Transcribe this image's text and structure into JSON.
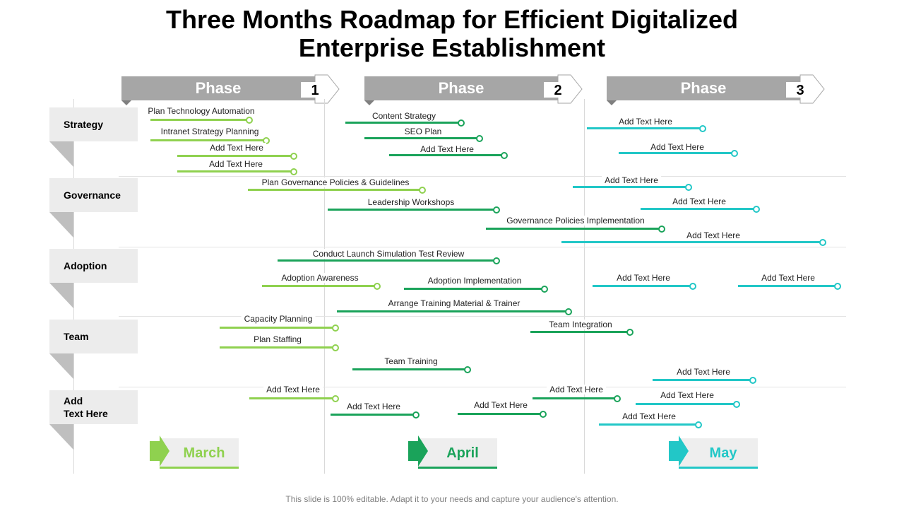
{
  "title": {
    "line1": "Three Months Roadmap for Efficient Digitalized",
    "line2": "Enterprise Establishment"
  },
  "phases": [
    {
      "label": "Phase",
      "number": "1"
    },
    {
      "label": "Phase",
      "number": "2"
    },
    {
      "label": "Phase",
      "number": "3"
    }
  ],
  "categories": [
    {
      "line1": "Strategy"
    },
    {
      "line1": "Governance"
    },
    {
      "line1": "Adoption"
    },
    {
      "line1": "Team"
    },
    {
      "line1": "Add",
      "line2": "Text Here"
    }
  ],
  "colors": {
    "light_green": "#8fd14f",
    "green": "#1aa35a",
    "cyan": "#22c7c7",
    "phase_grey": "#a6a6a6",
    "category_grey": "#ececec"
  },
  "tasks": [
    {
      "label": "Plan Technology Automation",
      "color": "light_green"
    },
    {
      "label": "Intranet Strategy Planning",
      "color": "light_green"
    },
    {
      "label": "Add Text Here",
      "color": "light_green"
    },
    {
      "label": "Add Text Here",
      "color": "light_green"
    },
    {
      "label": "Content Strategy",
      "color": "green"
    },
    {
      "label": "SEO Plan",
      "color": "green"
    },
    {
      "label": "Add Text Here",
      "color": "green"
    },
    {
      "label": "Add Text Here",
      "color": "cyan"
    },
    {
      "label": "Add Text Here",
      "color": "cyan"
    },
    {
      "label": "Plan Governance Policies & Guidelines",
      "color": "light_green"
    },
    {
      "label": "Leadership Workshops",
      "color": "green"
    },
    {
      "label": "Governance Policies Implementation",
      "color": "green"
    },
    {
      "label": "Add Text Here",
      "color": "cyan"
    },
    {
      "label": "Add Text Here",
      "color": "cyan"
    },
    {
      "label": "Add Text Here",
      "color": "cyan"
    },
    {
      "label": "Conduct Launch Simulation Test Review",
      "color": "green"
    },
    {
      "label": "Adoption Awareness",
      "color": "light_green"
    },
    {
      "label": "Adoption Implementation",
      "color": "green"
    },
    {
      "label": "Arrange Training Material & Trainer",
      "color": "green"
    },
    {
      "label": "Add Text Here",
      "color": "cyan"
    },
    {
      "label": "Add Text Here",
      "color": "cyan"
    },
    {
      "label": "Capacity Planning",
      "color": "light_green"
    },
    {
      "label": "Plan Staffing",
      "color": "light_green"
    },
    {
      "label": "Team Training",
      "color": "green"
    },
    {
      "label": "Team Integration",
      "color": "green"
    },
    {
      "label": "Add Text Here",
      "color": "cyan"
    },
    {
      "label": "Add Text Here",
      "color": "light_green"
    },
    {
      "label": "Add Text Here",
      "color": "green"
    },
    {
      "label": "Add Text Here",
      "color": "green"
    },
    {
      "label": "Add Text Here",
      "color": "green"
    },
    {
      "label": "Add Text Here",
      "color": "cyan"
    },
    {
      "label": "Add Text Here",
      "color": "cyan"
    }
  ],
  "months": [
    {
      "label": "March",
      "color": "light_green"
    },
    {
      "label": "April",
      "color": "green"
    },
    {
      "label": "May",
      "color": "cyan"
    }
  ],
  "footer": "This slide is 100% editable. Adapt it to your needs and capture your audience's attention."
}
